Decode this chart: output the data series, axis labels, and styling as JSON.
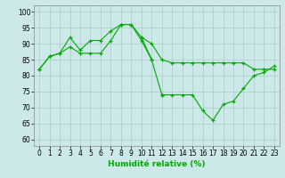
{
  "title": "",
  "xlabel": "Humidité relative (%)",
  "ylabel": "",
  "background_color": "#cce8e8",
  "grid_color": "#aacccc",
  "line_color": "#00aa00",
  "xlim": [
    -0.5,
    23.5
  ],
  "ylim": [
    58,
    102
  ],
  "yticks": [
    60,
    65,
    70,
    75,
    80,
    85,
    90,
    95,
    100
  ],
  "xticks": [
    0,
    1,
    2,
    3,
    4,
    5,
    6,
    7,
    8,
    9,
    10,
    11,
    12,
    13,
    14,
    15,
    16,
    17,
    18,
    19,
    20,
    21,
    22,
    23
  ],
  "lines": [
    [
      82,
      86,
      87,
      89,
      87,
      87,
      87,
      91,
      96,
      96,
      92,
      90,
      85,
      84,
      84,
      84,
      84,
      84,
      84,
      84,
      84,
      82,
      82,
      82
    ],
    [
      null,
      null,
      null,
      null,
      null,
      null,
      null,
      null,
      null,
      null,
      null,
      null,
      null,
      null,
      null,
      null,
      null,
      null,
      null,
      null,
      null,
      null,
      null,
      null
    ],
    [
      82,
      86,
      87,
      92,
      88,
      91,
      91,
      94,
      96,
      96,
      91,
      85,
      null,
      null,
      null,
      null,
      null,
      null,
      null,
      null,
      null,
      null,
      null,
      null
    ],
    [
      null,
      null,
      null,
      null,
      null,
      null,
      null,
      null,
      null,
      null,
      92,
      85,
      74,
      null,
      null,
      null,
      null,
      null,
      null,
      null,
      null,
      null,
      null,
      null
    ],
    [
      null,
      null,
      null,
      null,
      null,
      null,
      null,
      null,
      null,
      null,
      null,
      null,
      74,
      74,
      74,
      74,
      69,
      66,
      71,
      72,
      76,
      80,
      81,
      83
    ]
  ],
  "figsize": [
    3.2,
    2.0
  ],
  "dpi": 100
}
